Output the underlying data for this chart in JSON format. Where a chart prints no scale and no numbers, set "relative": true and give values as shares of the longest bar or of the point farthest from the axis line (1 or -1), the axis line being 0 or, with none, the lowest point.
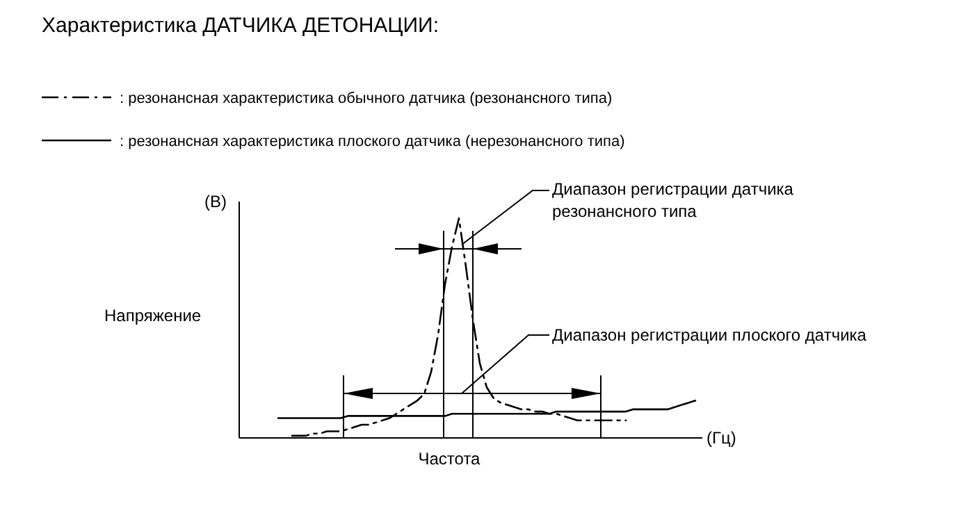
{
  "chart_data": {
    "type": "line",
    "title": "Характеристика ДАТЧИКА ДЕТОНАЦИИ:",
    "xlabel": "Частота",
    "ylabel": "Напряжение",
    "relative": true,
    "legend": "top left",
    "marker": "none",
    "annotations": [
      "(В)",
      "(Гц)",
      "Диапазон регистрации датчика\nрезонансного типа",
      "Диапазон регистрации плоского датчика"
    ],
    "categories": [
      null,
      null,
      null,
      null,
      null,
      null,
      null,
      null,
      null,
      null,
      null,
      null,
      null,
      null,
      null,
      null,
      null,
      null,
      null,
      null,
      null,
      null,
      null,
      null,
      null,
      null,
      null,
      null,
      null,
      null,
      null,
      null,
      null,
      null,
      null,
      null,
      null,
      null,
      null,
      null,
      null,
      null,
      null,
      null,
      null,
      null,
      null,
      null,
      null,
      null,
      null,
      null,
      null,
      null,
      null,
      null,
      null,
      null,
      null,
      null,
      null,
      null,
      null,
      null,
      null,
      null,
      null
    ],
    "series": [
      {
        "name": ": резонансная характеристика обычного датчика (резонансного типа)",
        "color": "#000000",
        "line_style": "dashed",
        "values": [
          null,
          null,
          null,
          null,
          null,
          null,
          null,
          0.01,
          0.01,
          0.01,
          0.02,
          0.02,
          0.03,
          0.03,
          0.03,
          0.04,
          0.05,
          0.06,
          0.06,
          0.07,
          0.08,
          0.09,
          0.11,
          0.13,
          0.15,
          0.17,
          0.2,
          0.3,
          0.47,
          0.7,
          0.87,
          1,
          0.78,
          0.54,
          0.34,
          0.23,
          0.18,
          0.16,
          0.15,
          0.14,
          0.13,
          0.13,
          0.12,
          0.12,
          0.11,
          0.11,
          0.1,
          0.09,
          0.08,
          0.08,
          0.08,
          0.08,
          0.08,
          0.08,
          0.08,
          0.08,
          null,
          null,
          null,
          null,
          null,
          null,
          null,
          null,
          null,
          null,
          null
        ]
      },
      {
        "name": ": резонансная характеристика плоского датчика (нерезонансного типа)",
        "color": "#000000",
        "line_style": "solid",
        "values": [
          null,
          null,
          null,
          null,
          null,
          0.09,
          0.09,
          0.09,
          0.09,
          0.09,
          0.09,
          0.09,
          0.09,
          0.09,
          0.09,
          0.1,
          0.1,
          0.1,
          0.1,
          0.1,
          0.1,
          0.1,
          0.1,
          0.1,
          0.1,
          0.1,
          0.1,
          0.1,
          0.1,
          0.1,
          0.11,
          0.11,
          0.11,
          0.11,
          0.11,
          0.11,
          0.11,
          0.11,
          0.11,
          0.11,
          0.11,
          0.11,
          0.11,
          0.11,
          0.11,
          0.12,
          0.12,
          0.12,
          0.12,
          0.12,
          0.12,
          0.12,
          0.12,
          0.12,
          0.12,
          0.12,
          0.13,
          0.13,
          0.13,
          0.13,
          0.13,
          0.13,
          0.14,
          0.15,
          0.16,
          0.17,
          null
        ]
      }
    ]
  }
}
